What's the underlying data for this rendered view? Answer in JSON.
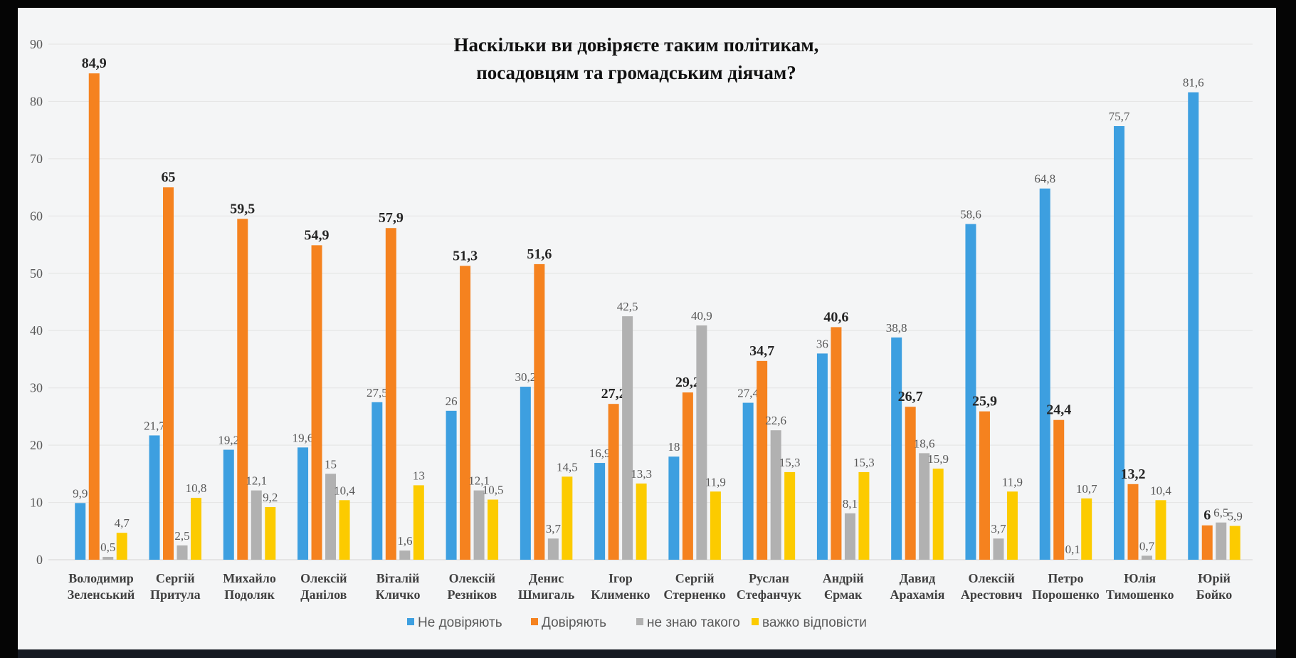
{
  "chart_data": {
    "type": "bar",
    "title": [
      "Наскільки ви довіряєте таким політикам,",
      "посадовцям та громадським діячам?"
    ],
    "xlabel": "",
    "ylabel": "",
    "ylim": [
      0,
      90
    ],
    "yticks": [
      0,
      10,
      20,
      30,
      40,
      50,
      60,
      70,
      80,
      90
    ],
    "grid": true,
    "legend_position": "bottom",
    "categories": [
      [
        "Володимир",
        "Зеленський"
      ],
      [
        "Сергій",
        "Притула"
      ],
      [
        "Михайло",
        "Подоляк"
      ],
      [
        "Олексій",
        "Данілов"
      ],
      [
        "Віталій",
        "Кличко"
      ],
      [
        "Олексій",
        "Резніков"
      ],
      [
        "Денис",
        "Шмигаль"
      ],
      [
        "Ігор",
        "Клименко"
      ],
      [
        "Сергій",
        "Стерненко"
      ],
      [
        "Руслан",
        "Стефанчук"
      ],
      [
        "Андрій",
        "Єрмак"
      ],
      [
        "Давид",
        "Арахамія"
      ],
      [
        "Олексій",
        "Арестович"
      ],
      [
        "Петро",
        "Порошенко"
      ],
      [
        "Юлія",
        "Тимошенко"
      ],
      [
        "Юрій",
        "Бойко"
      ]
    ],
    "series": [
      {
        "name": "Не довіряють",
        "color": "#3d9fe0",
        "bold_labels": false,
        "values": [
          9.9,
          21.7,
          19.2,
          19.6,
          27.5,
          26,
          30.2,
          16.9,
          18,
          27.4,
          36,
          38.8,
          58.6,
          64.8,
          75.7,
          81.6
        ]
      },
      {
        "name": "Довіряють",
        "color": "#f5821f",
        "bold_labels": true,
        "values": [
          84.9,
          65,
          59.5,
          54.9,
          57.9,
          51.3,
          51.6,
          27.2,
          29.2,
          34.7,
          40.6,
          26.7,
          25.9,
          24.4,
          13.2,
          6
        ]
      },
      {
        "name": "не знаю такого",
        "color": "#b1b1b1",
        "bold_labels": false,
        "values": [
          0.5,
          2.5,
          12.1,
          15,
          1.6,
          12.1,
          3.7,
          42.5,
          40.9,
          22.6,
          8.1,
          18.6,
          3.7,
          0.1,
          0.7,
          6.5
        ]
      },
      {
        "name": "важко відповісти",
        "color": "#fccb00",
        "bold_labels": false,
        "values": [
          4.7,
          10.8,
          9.2,
          10.4,
          13,
          10.5,
          14.5,
          13.3,
          11.9,
          15.3,
          15.3,
          15.9,
          11.9,
          10.7,
          10.4,
          5.9
        ]
      }
    ]
  }
}
